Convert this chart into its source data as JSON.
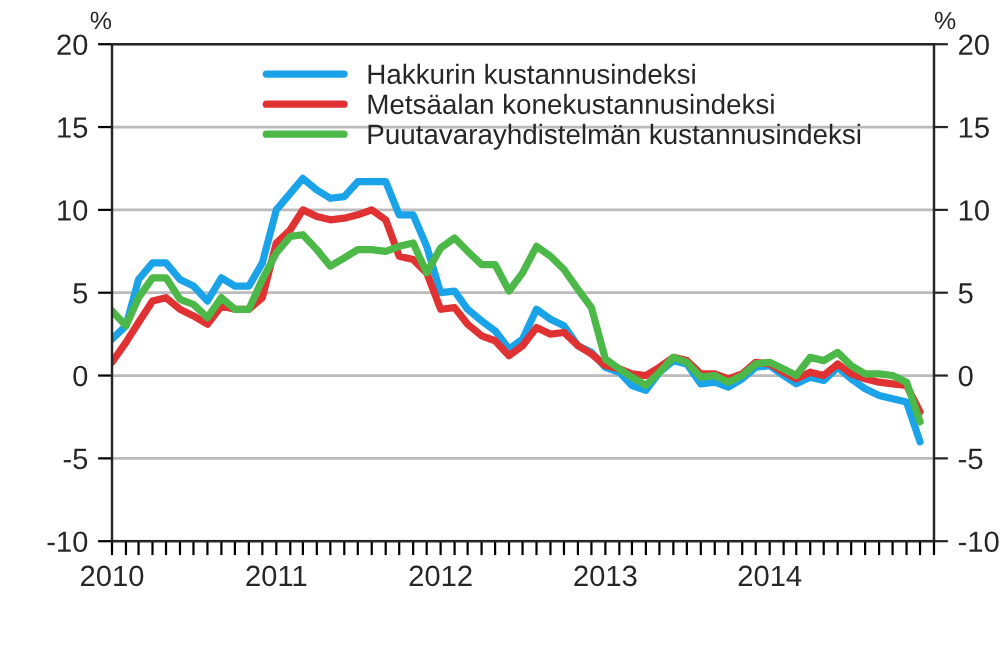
{
  "chart_data": {
    "type": "line",
    "x": [
      "2010-01",
      "2010-02",
      "2010-03",
      "2010-04",
      "2010-05",
      "2010-06",
      "2010-07",
      "2010-08",
      "2010-09",
      "2010-10",
      "2010-11",
      "2010-12",
      "2011-01",
      "2011-02",
      "2011-03",
      "2011-04",
      "2011-05",
      "2011-06",
      "2011-07",
      "2011-08",
      "2011-09",
      "2011-10",
      "2011-11",
      "2011-12",
      "2012-01",
      "2012-02",
      "2012-03",
      "2012-04",
      "2012-05",
      "2012-06",
      "2012-07",
      "2012-08",
      "2012-09",
      "2012-10",
      "2012-11",
      "2012-12",
      "2013-01",
      "2013-02",
      "2013-03",
      "2013-04",
      "2013-05",
      "2013-06",
      "2013-07",
      "2013-08",
      "2013-09",
      "2013-10",
      "2013-11",
      "2013-12",
      "2014-01",
      "2014-02",
      "2014-03",
      "2014-04",
      "2014-05",
      "2014-06",
      "2014-07",
      "2014-08",
      "2014-09",
      "2014-10",
      "2014-11",
      "2014-12"
    ],
    "series": [
      {
        "name": "Hakkurin kustannusindeksi",
        "color": "#1aa3e8",
        "values": [
          2.2,
          3.0,
          5.8,
          6.8,
          6.8,
          5.8,
          5.4,
          4.5,
          5.9,
          5.4,
          5.4,
          6.8,
          10.0,
          11.0,
          11.9,
          11.2,
          10.7,
          10.8,
          11.7,
          11.7,
          11.7,
          9.7,
          9.7,
          7.8,
          5.0,
          5.1,
          4.0,
          3.3,
          2.7,
          1.6,
          2.2,
          4.0,
          3.4,
          3.0,
          1.8,
          1.4,
          0.5,
          0.2,
          -0.6,
          -0.9,
          0.2,
          0.9,
          0.7,
          -0.5,
          -0.4,
          -0.7,
          -0.2,
          0.5,
          0.6,
          0.0,
          -0.5,
          -0.1,
          -0.3,
          0.5,
          -0.2,
          -0.8,
          -1.2,
          -1.4,
          -1.6,
          -4.0
        ]
      },
      {
        "name": "Metsäalan konekustannusindeksi",
        "color": "#e03232",
        "values": [
          0.8,
          2.0,
          3.2,
          4.5,
          4.7,
          4.0,
          3.6,
          3.1,
          4.2,
          4.0,
          4.0,
          4.7,
          8.0,
          8.8,
          10.0,
          9.6,
          9.4,
          9.5,
          9.7,
          10.0,
          9.4,
          7.2,
          7.0,
          6.2,
          4.0,
          4.1,
          3.1,
          2.4,
          2.1,
          1.2,
          1.8,
          2.9,
          2.5,
          2.6,
          1.8,
          1.3,
          0.6,
          0.4,
          0.1,
          0.0,
          0.5,
          1.1,
          0.9,
          0.1,
          0.1,
          -0.2,
          0.1,
          0.8,
          0.7,
          0.2,
          -0.2,
          0.2,
          0.0,
          0.7,
          0.1,
          -0.2,
          -0.4,
          -0.5,
          -0.6,
          -2.2
        ]
      },
      {
        "name": "Puutavarayhdistelmän kustannusindeksi",
        "color": "#4cb848",
        "values": [
          3.9,
          3.0,
          4.7,
          5.9,
          5.9,
          4.6,
          4.3,
          3.5,
          4.7,
          4.0,
          4.0,
          5.8,
          7.4,
          8.4,
          8.5,
          7.6,
          6.6,
          7.1,
          7.6,
          7.6,
          7.5,
          7.8,
          8.0,
          6.2,
          7.7,
          8.3,
          7.5,
          6.7,
          6.7,
          5.1,
          6.2,
          7.8,
          7.2,
          6.4,
          5.2,
          4.1,
          1.0,
          0.4,
          -0.1,
          -0.6,
          0.2,
          1.1,
          0.8,
          -0.1,
          0.0,
          -0.4,
          0.0,
          0.7,
          0.8,
          0.4,
          0.0,
          1.1,
          0.9,
          1.4,
          0.6,
          0.1,
          0.1,
          0.0,
          -0.4,
          -2.8
        ]
      }
    ],
    "ylabel": "%",
    "y2label": "%",
    "xlim": [
      "2010-01",
      "2015-01"
    ],
    "xticks": [
      {
        "value": "2010-01",
        "label": "2010"
      },
      {
        "value": "2010-02",
        "label": null
      },
      {
        "value": "2010-03",
        "label": null
      },
      {
        "value": "2010-04",
        "label": null
      },
      {
        "value": "2010-05",
        "label": null
      },
      {
        "value": "2010-06",
        "label": null
      },
      {
        "value": "2010-07",
        "label": null
      },
      {
        "value": "2010-08",
        "label": null
      },
      {
        "value": "2010-09",
        "label": null
      },
      {
        "value": "2010-10",
        "label": null
      },
      {
        "value": "2010-11",
        "label": null
      },
      {
        "value": "2010-12",
        "label": null
      },
      {
        "value": "2011-01",
        "label": "2011"
      },
      {
        "value": "2011-02",
        "label": null
      },
      {
        "value": "2011-03",
        "label": null
      },
      {
        "value": "2011-04",
        "label": null
      },
      {
        "value": "2011-05",
        "label": null
      },
      {
        "value": "2011-06",
        "label": null
      },
      {
        "value": "2011-07",
        "label": null
      },
      {
        "value": "2011-08",
        "label": null
      },
      {
        "value": "2011-09",
        "label": null
      },
      {
        "value": "2011-10",
        "label": null
      },
      {
        "value": "2011-11",
        "label": null
      },
      {
        "value": "2011-12",
        "label": null
      },
      {
        "value": "2012-01",
        "label": "2012"
      },
      {
        "value": "2012-02",
        "label": null
      },
      {
        "value": "2012-03",
        "label": null
      },
      {
        "value": "2012-04",
        "label": null
      },
      {
        "value": "2012-05",
        "label": null
      },
      {
        "value": "2012-06",
        "label": null
      },
      {
        "value": "2012-07",
        "label": null
      },
      {
        "value": "2012-08",
        "label": null
      },
      {
        "value": "2012-09",
        "label": null
      },
      {
        "value": "2012-10",
        "label": null
      },
      {
        "value": "2012-11",
        "label": null
      },
      {
        "value": "2012-12",
        "label": null
      },
      {
        "value": "2013-01",
        "label": "2013"
      },
      {
        "value": "2013-02",
        "label": null
      },
      {
        "value": "2013-03",
        "label": null
      },
      {
        "value": "2013-04",
        "label": null
      },
      {
        "value": "2013-05",
        "label": null
      },
      {
        "value": "2013-06",
        "label": null
      },
      {
        "value": "2013-07",
        "label": null
      },
      {
        "value": "2013-08",
        "label": null
      },
      {
        "value": "2013-09",
        "label": null
      },
      {
        "value": "2013-10",
        "label": null
      },
      {
        "value": "2013-11",
        "label": null
      },
      {
        "value": "2013-12",
        "label": null
      },
      {
        "value": "2014-01",
        "label": "2014"
      },
      {
        "value": "2014-02",
        "label": null
      },
      {
        "value": "2014-03",
        "label": null
      },
      {
        "value": "2014-04",
        "label": null
      },
      {
        "value": "2014-05",
        "label": null
      },
      {
        "value": "2014-06",
        "label": null
      },
      {
        "value": "2014-07",
        "label": null
      },
      {
        "value": "2014-08",
        "label": null
      },
      {
        "value": "2014-09",
        "label": null
      },
      {
        "value": "2014-10",
        "label": null
      },
      {
        "value": "2014-11",
        "label": null
      },
      {
        "value": "2014-12",
        "label": null
      },
      {
        "value": "2015-01",
        "label": null
      }
    ],
    "ylim": [
      -10,
      20
    ],
    "yticks": [
      -10,
      -5,
      0,
      5,
      10,
      15,
      20
    ],
    "y2lim": [
      -10,
      20
    ],
    "y2ticks": [
      -10,
      -5,
      0,
      5,
      10,
      15,
      20
    ],
    "grid": "y",
    "legend": "top",
    "marker": "none",
    "line_style": "solid"
  }
}
